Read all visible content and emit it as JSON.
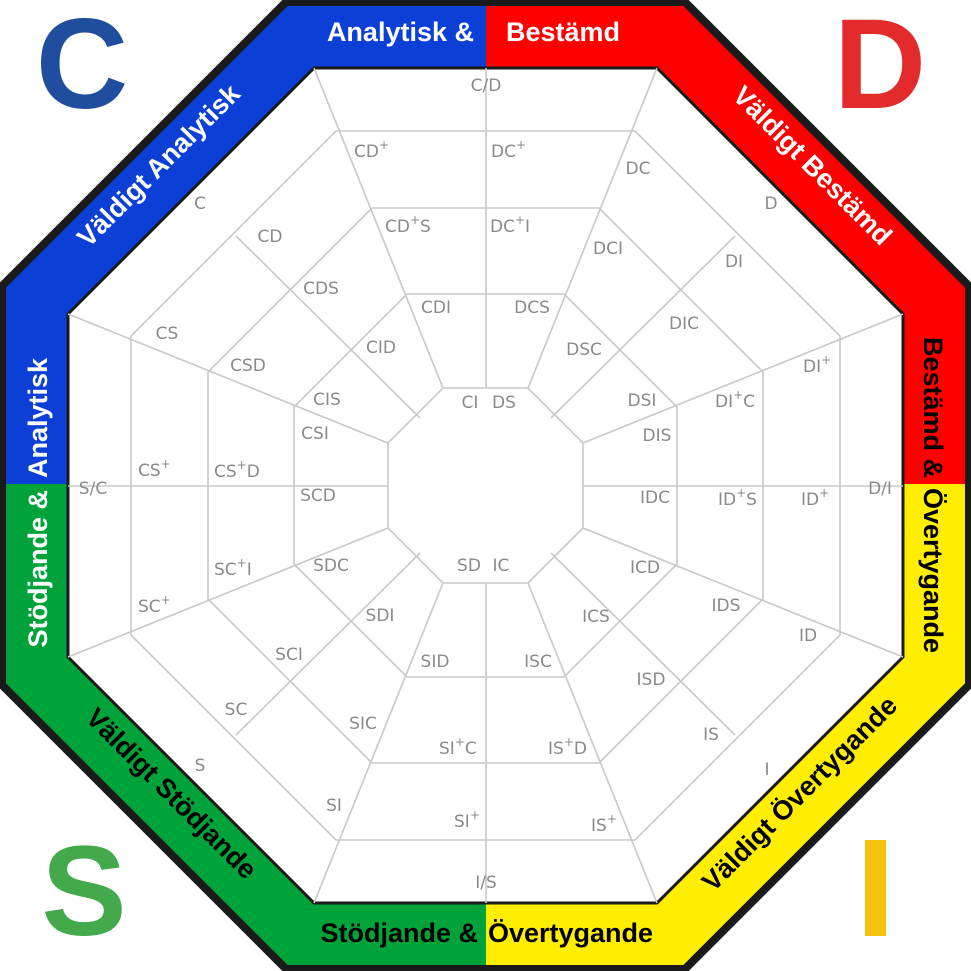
{
  "corners": [
    {
      "key": "C",
      "text": "C",
      "color": "#1f4e9e"
    },
    {
      "key": "D",
      "text": "D",
      "color": "#e32b2b"
    },
    {
      "key": "S",
      "text": "S",
      "color": "#43a94b"
    },
    {
      "key": "I",
      "text": "I",
      "color": "#f6c20f"
    }
  ],
  "band_colors": {
    "blue": "#0b3fd6",
    "red": "#ff0000",
    "yellow": "#ffee00",
    "green": "#00a33a",
    "border": "#1a1a1a"
  },
  "band_labels": {
    "top_left": "Analytisk &",
    "top_right": "Bestämd",
    "bottom_left": "Stödjande &",
    "bottom_right": "Övertygande",
    "upper_left_diag": "Väldigt Analytisk",
    "upper_right_diag": "Väldigt Bestämd",
    "lower_left_diag": "Väldigt Stödjande",
    "lower_right_diag": "Väldigt Övertygande",
    "left_top": "Stödjande &",
    "left_bottom": "Analytisk",
    "right_top": "Bestämd &",
    "right_bottom": "Övertygande"
  },
  "cells": {
    "c_d": "C/D",
    "d_i": "D/I",
    "i_s": "I/S",
    "s_c": "S/C",
    "cd_plus": "CD",
    "dc_plus": "DC",
    "cd_plus_s": "CD",
    "cd_plus_s_s": "S",
    "dc_plus_i": "DC",
    "dc_plus_i_i": "I",
    "c": "C",
    "cd": "CD",
    "cds": "CDS",
    "cs": "CS",
    "csd": "CSD",
    "cdi": "CDI",
    "dcs": "DCS",
    "cid": "CID",
    "cis": "CIS",
    "csi": "CSI",
    "ci": "CI",
    "ds": "DS",
    "dc": "DC",
    "d": "D",
    "dci": "DCI",
    "di": "DI",
    "dic": "DIC",
    "dsc": "DSC",
    "di_plus": "DI",
    "dsi": "DSI",
    "di_plus_c": "DI",
    "di_plus_c_c": "C",
    "dis": "DIS",
    "cs_plus": "CS",
    "cs_plus_d": "CS",
    "cs_plus_d_d": "D",
    "scd": "SCD",
    "idc": "IDC",
    "id_plus_s": "ID",
    "id_plus_s_s": "S",
    "id_plus": "ID",
    "sc_plus_i": "SC",
    "sc_plus_i_i": "I",
    "sdc": "SDC",
    "sd": "SD",
    "ic": "IC",
    "icd": "ICD",
    "sc_plus": "SC",
    "sdi": "SDI",
    "ids": "IDS",
    "ics": "ICS",
    "id": "ID",
    "sci": "SCI",
    "sid": "SID",
    "isc": "ISC",
    "isd": "ISD",
    "sc": "SC",
    "sic": "SIC",
    "is": "IS",
    "si_plus_c": "SI",
    "si_plus_c_c": "C",
    "is_plus_d": "IS",
    "is_plus_d_d": "D",
    "s": "S",
    "i": "I",
    "si": "SI",
    "si_plus": "SI",
    "is_plus": "IS",
    "plus": "+"
  }
}
